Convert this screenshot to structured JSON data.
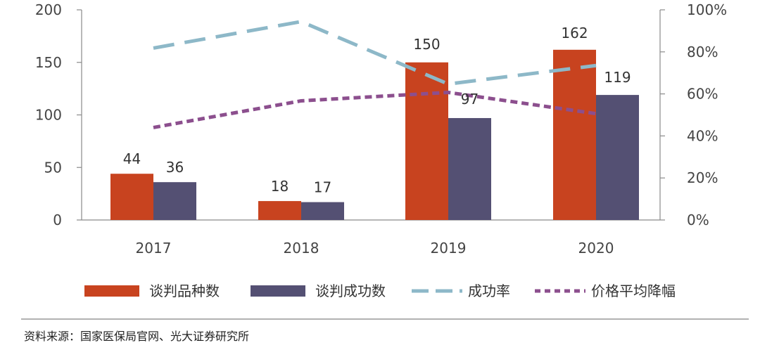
{
  "chart_data": {
    "type": "bar",
    "categories": [
      "2017",
      "2018",
      "2019",
      "2020"
    ],
    "series": [
      {
        "name": "谈判品种数",
        "type": "bar",
        "axis": "left",
        "color": "#C8431F",
        "values": [
          44,
          18,
          150,
          162
        ],
        "labels": [
          "44",
          "18",
          "150",
          "162"
        ]
      },
      {
        "name": "谈判成功数",
        "type": "bar",
        "axis": "left",
        "color": "#545073",
        "values": [
          36,
          17,
          97,
          119
        ],
        "labels": [
          "36",
          "17",
          "97",
          "119"
        ]
      },
      {
        "name": "成功率",
        "type": "line",
        "style": "dashed",
        "axis": "right",
        "color": "#8DB8C8",
        "values": [
          81.8,
          94.4,
          64.7,
          73.5
        ]
      },
      {
        "name": "价格平均降幅",
        "type": "line",
        "style": "dotted",
        "axis": "right",
        "color": "#8C4F8E",
        "values": [
          44,
          56.7,
          60.7,
          50.6
        ]
      }
    ],
    "y_left": {
      "min": 0,
      "max": 200,
      "ticks": [
        "0",
        "50",
        "100",
        "150",
        "200"
      ]
    },
    "y_right": {
      "min": 0,
      "max": 100,
      "ticks": [
        "0%",
        "20%",
        "40%",
        "60%",
        "80%",
        "100%"
      ]
    },
    "legend_position": "bottom",
    "grid": false
  },
  "source_note": "资料来源：国家医保局官网、光大证券研究所"
}
